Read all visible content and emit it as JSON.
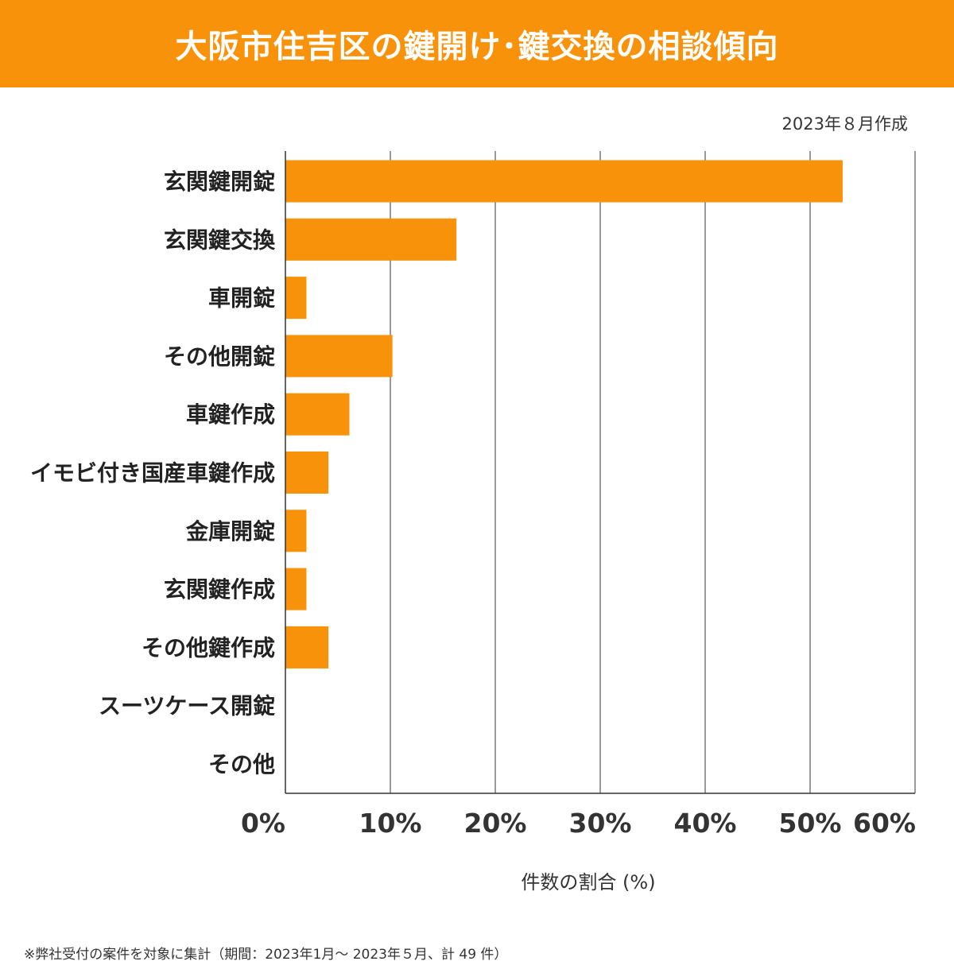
{
  "header": {
    "title": "大阪市住吉区の鍵開け･鍵交換の相談傾向"
  },
  "date_note": "2023年８月作成",
  "footnote": "※弊社受付の案件を対象に集計（期間：2023年1月～ 2023年５月、計 49 件）",
  "colors": {
    "accent": "#f7920a",
    "grid": "#333333"
  },
  "chart_data": {
    "type": "bar",
    "orientation": "horizontal",
    "title": "大阪市住吉区の鍵開け･鍵交換の相談傾向",
    "xlabel": "件数の割合 (%)",
    "ylabel": "",
    "xlim": [
      0,
      60
    ],
    "ticks": [
      0,
      10,
      20,
      30,
      40,
      50,
      60
    ],
    "tick_labels": [
      "0%",
      "10%",
      "20%",
      "30%",
      "40%",
      "50%",
      "60%"
    ],
    "grid": true,
    "categories": [
      "玄関鍵開錠",
      "玄関鍵交換",
      "車開錠",
      "その他開錠",
      "車鍵作成",
      "イモビ付き国産車鍵作成",
      "金庫開錠",
      "玄関鍵作成",
      "その他鍵作成",
      "スーツケース開錠",
      "その他"
    ],
    "values": [
      53.1,
      16.3,
      2.0,
      10.2,
      6.1,
      4.1,
      2.0,
      2.0,
      4.1,
      0,
      0
    ]
  }
}
